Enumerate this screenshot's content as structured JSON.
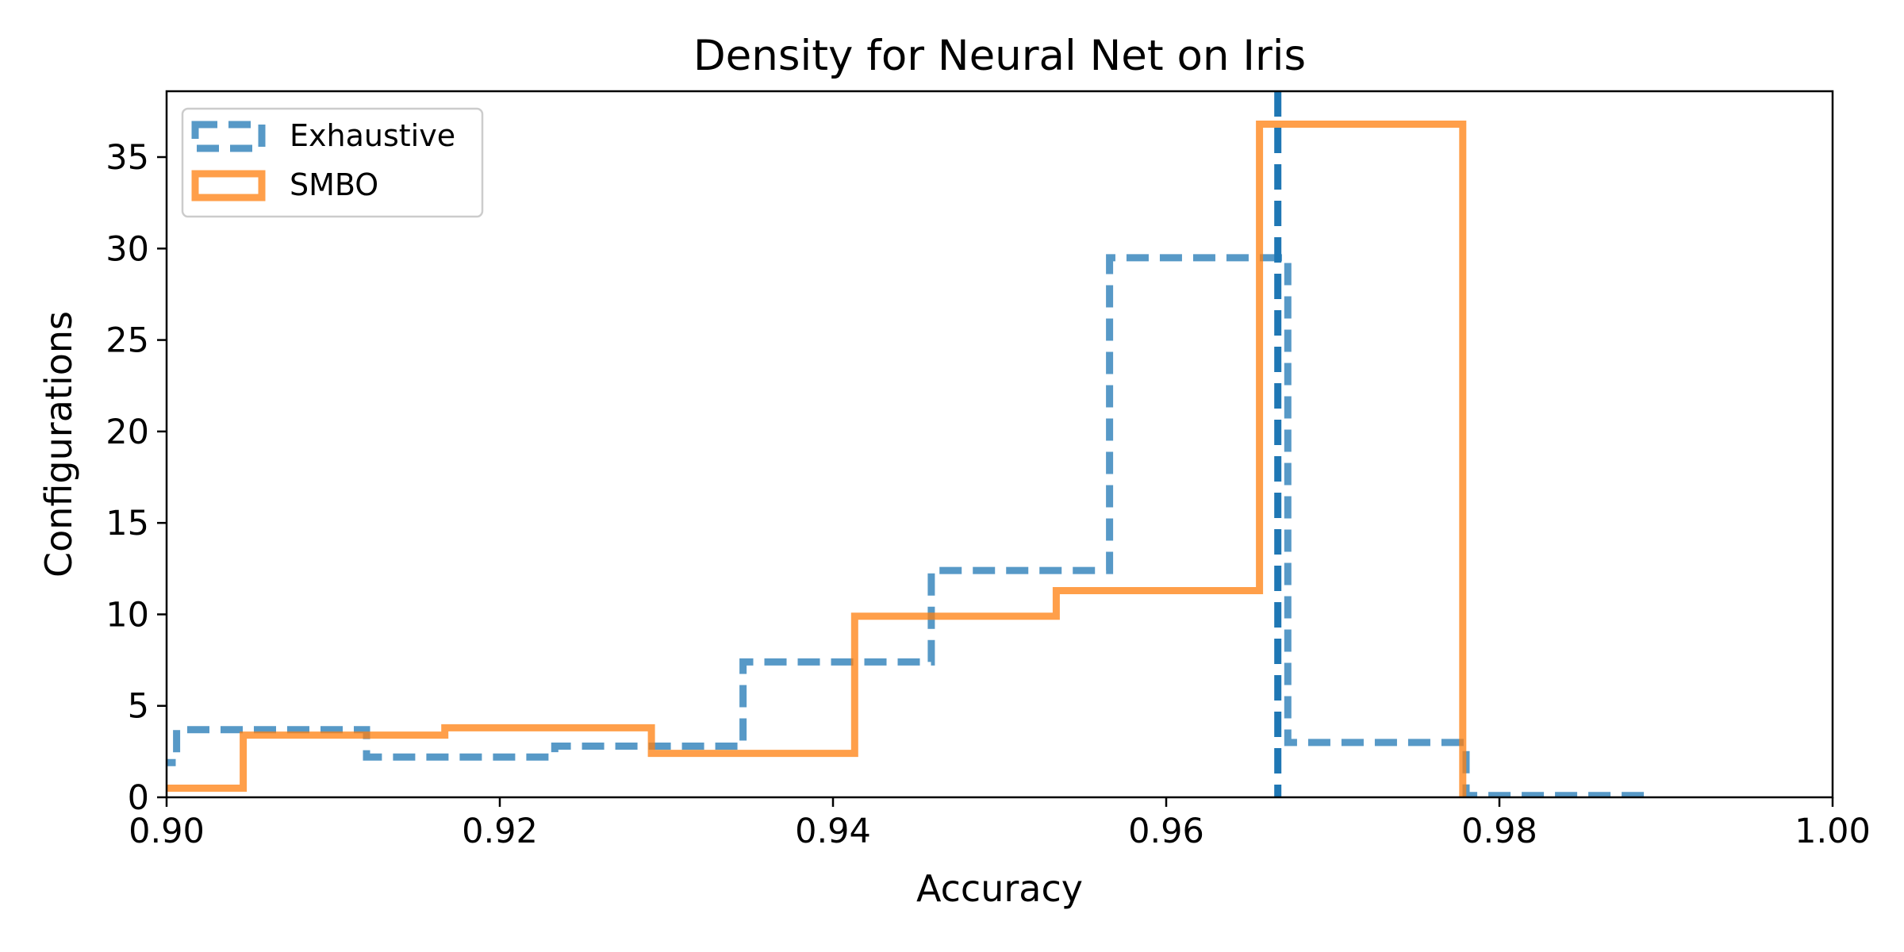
{
  "chart_data": {
    "type": "histogram",
    "title": "Density for Neural Net on Iris",
    "xlabel": "Accuracy",
    "ylabel": "Configurations",
    "xlim": [
      0.9,
      1.0
    ],
    "ylim": [
      0,
      38.6
    ],
    "x_ticks": [
      "0.90",
      "0.92",
      "0.94",
      "0.96",
      "0.98",
      "1.00"
    ],
    "x_tick_values": [
      0.9,
      0.92,
      0.94,
      0.96,
      0.98,
      1.0
    ],
    "y_ticks": [
      "0",
      "5",
      "10",
      "15",
      "20",
      "25",
      "30",
      "35"
    ],
    "y_tick_values": [
      0,
      5,
      10,
      15,
      20,
      25,
      30,
      35
    ],
    "grid": false,
    "legend_position": "top-left",
    "series": [
      {
        "name": "Exhaustive",
        "style": "dashed",
        "color": "#1f77b4",
        "edges": [
          0.8893,
          0.9006,
          0.912,
          0.9233,
          0.9346,
          0.9459,
          0.9566,
          0.9673,
          0.978,
          0.9887
        ],
        "values": [
          1.9,
          3.7,
          2.2,
          2.8,
          7.4,
          12.4,
          29.5,
          3.0,
          0.1
        ]
      },
      {
        "name": "SMBO",
        "style": "solid",
        "color": "#ff7f0e",
        "edges": [
          0.893,
          0.9046,
          0.9167,
          0.9291,
          0.9413,
          0.9534,
          0.9656,
          0.9778
        ],
        "values": [
          0.5,
          3.4,
          3.8,
          2.4,
          9.9,
          11.3,
          36.8
        ]
      }
    ],
    "reference_line": {
      "x": 0.9667,
      "color": "#1f77b4",
      "style": "dashed"
    }
  }
}
